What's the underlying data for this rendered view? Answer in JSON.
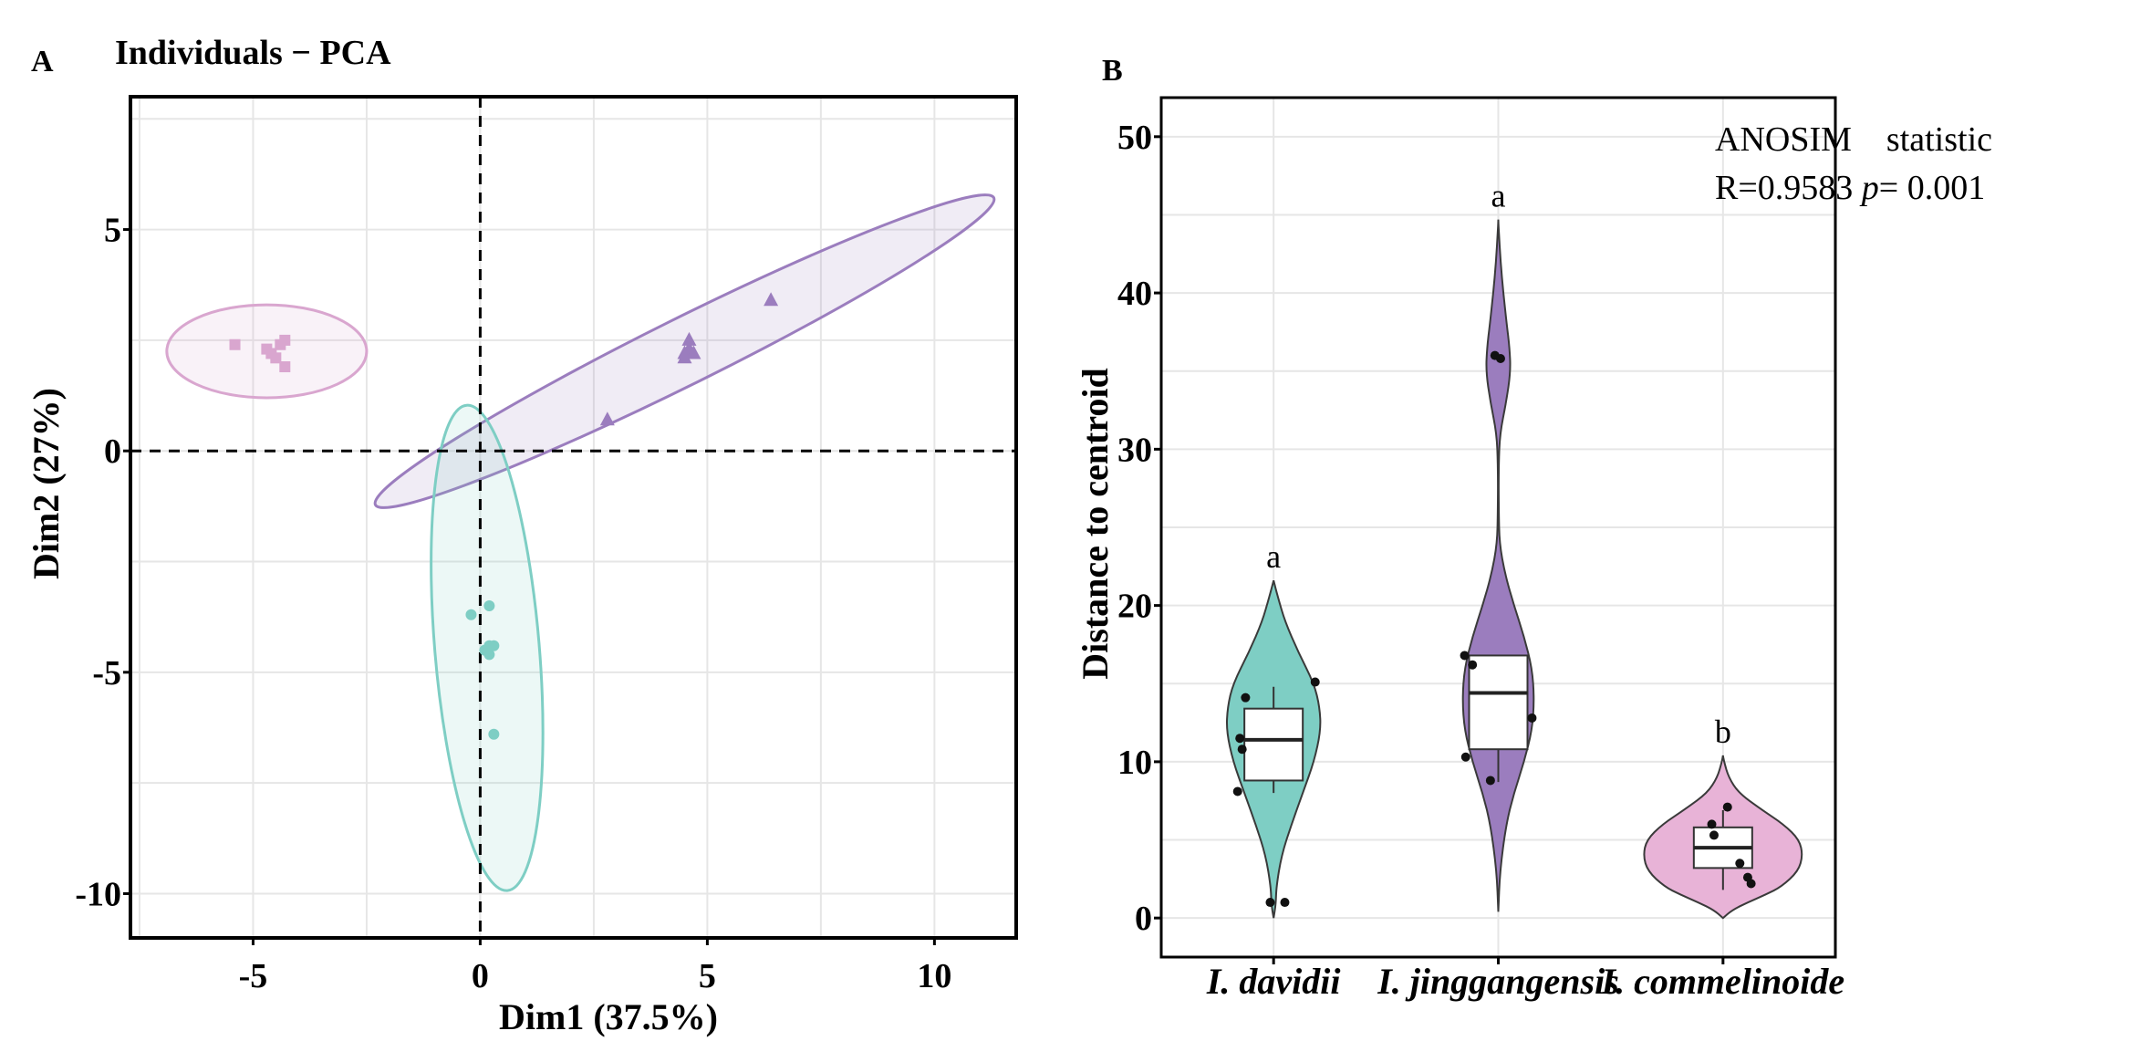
{
  "chart_data": [
    {
      "panel_label": "A",
      "type": "scatter",
      "title": "Individuals − PCA",
      "xlabel": "Dim1 (37.5%)",
      "ylabel": "Dim2 (27%)",
      "xlim": [
        -7.7,
        11.8
      ],
      "ylim": [
        -11.0,
        8.0
      ],
      "x_ticks": [
        -5,
        0,
        5,
        10
      ],
      "x_tick_labels": [
        "-5",
        "0",
        "5",
        "10"
      ],
      "y_ticks": [
        5,
        0,
        -5,
        -10
      ],
      "y_tick_labels": [
        "5",
        "0",
        "-5",
        "-10"
      ],
      "reference_lines": {
        "x": 0,
        "y": 0,
        "style": "dashed"
      },
      "grid": true,
      "legend": "none",
      "series": [
        {
          "marker": "square",
          "color": "#D9A6CF",
          "points": [
            [
              -5.4,
              2.4
            ],
            [
              -4.7,
              2.3
            ],
            [
              -4.6,
              2.2
            ],
            [
              -4.5,
              2.1
            ],
            [
              -4.4,
              2.4
            ],
            [
              -4.3,
              2.5
            ],
            [
              -4.3,
              1.9
            ]
          ],
          "ellipse": {
            "cx": -4.7,
            "cy": 2.25,
            "rx": 2.2,
            "ry": 1.05,
            "rotation_deg": 0
          }
        },
        {
          "marker": "triangle",
          "color": "#9B7DBE",
          "points": [
            [
              2.8,
              0.7
            ],
            [
              4.5,
              2.2
            ],
            [
              4.6,
              2.3
            ],
            [
              4.7,
              2.2
            ],
            [
              4.6,
              2.5
            ],
            [
              4.5,
              2.1
            ],
            [
              6.4,
              3.4
            ]
          ],
          "ellipse": {
            "cx": 4.5,
            "cy": 2.25,
            "rx": 7.6,
            "ry": 0.75,
            "rotation_deg": -26.4
          }
        },
        {
          "marker": "circle",
          "color": "#7ECEC4",
          "points": [
            [
              -0.2,
              -3.7
            ],
            [
              0.2,
              -3.5
            ],
            [
              0.1,
              -4.5
            ],
            [
              0.2,
              -4.4
            ],
            [
              0.3,
              -4.4
            ],
            [
              0.2,
              -4.6
            ],
            [
              0.3,
              -6.4
            ]
          ],
          "ellipse": {
            "cx": 0.15,
            "cy": -4.45,
            "rx": 1.15,
            "ry": 5.5,
            "rotation_deg": -4.8
          }
        }
      ]
    },
    {
      "panel_label": "B",
      "type": "violin",
      "ylabel": "Distance to centroid",
      "ylim": [
        -2.5,
        52.5
      ],
      "y_ticks": [
        0,
        10,
        20,
        30,
        40,
        50
      ],
      "y_tick_labels": [
        "0",
        "10",
        "20",
        "30",
        "40",
        "50"
      ],
      "categories": [
        "I. davidii",
        "I. jinggangensis",
        "I. commelinoide"
      ],
      "annotation": {
        "line1": "ANOSIM    statistic",
        "line2_prefix": "R=0.9583 ",
        "line2_italic": "p",
        "line2_suffix": "= 0.001"
      },
      "grid": true,
      "legend": "none",
      "series": [
        {
          "name": "I. davidii",
          "color": "#7ECEC4",
          "significance_letter": "a",
          "box": {
            "q1": 8.8,
            "median": 11.4,
            "q3": 13.4,
            "whisker_low": 8.0,
            "whisker_high": 14.8
          },
          "points": [
            [
              -0.25,
              14.1
            ],
            [
              -0.3,
              11.5
            ],
            [
              -0.28,
              10.8
            ],
            [
              -0.32,
              8.1
            ],
            [
              0.37,
              15.1
            ],
            [
              -0.03,
              1.0
            ],
            [
              0.1,
              1.0
            ]
          ],
          "density_profile": [
            [
              0,
              0
            ],
            [
              0.9,
              0.02
            ],
            [
              2,
              0.025
            ],
            [
              4,
              0.07
            ],
            [
              6,
              0.16
            ],
            [
              8,
              0.26
            ],
            [
              10,
              0.36
            ],
            [
              12,
              0.42
            ],
            [
              13.5,
              0.41
            ],
            [
              15,
              0.36
            ],
            [
              17,
              0.22
            ],
            [
              19,
              0.1
            ],
            [
              20.5,
              0.04
            ],
            [
              21.6,
              0
            ]
          ]
        },
        {
          "name": "I. jinggangensis",
          "color": "#9B7DBE",
          "significance_letter": "a",
          "box": {
            "q1": 10.8,
            "median": 14.4,
            "q3": 16.8,
            "whisker_low": 8.7,
            "whisker_high": 16.8
          },
          "points": [
            [
              -0.3,
              16.8
            ],
            [
              -0.23,
              16.2
            ],
            [
              -0.29,
              10.3
            ],
            [
              -0.03,
              36.0
            ],
            [
              0.02,
              35.8
            ],
            [
              0.3,
              12.8
            ],
            [
              -0.07,
              8.8
            ]
          ],
          "density_profile": [
            [
              0.4,
              0
            ],
            [
              3,
              0.015
            ],
            [
              6,
              0.07
            ],
            [
              8,
              0.14
            ],
            [
              10,
              0.23
            ],
            [
              12,
              0.3
            ],
            [
              14,
              0.32
            ],
            [
              16,
              0.3
            ],
            [
              18,
              0.23
            ],
            [
              20,
              0.14
            ],
            [
              22,
              0.06
            ],
            [
              24,
              0.01
            ],
            [
              26,
              0.004
            ],
            [
              29,
              0.003
            ],
            [
              31,
              0.015
            ],
            [
              33,
              0.07
            ],
            [
              35,
              0.11
            ],
            [
              36.5,
              0.1
            ],
            [
              38,
              0.075
            ],
            [
              40,
              0.045
            ],
            [
              42,
              0.02
            ],
            [
              44,
              0.004
            ],
            [
              44.7,
              0
            ]
          ]
        },
        {
          "name": "I. commelinoide",
          "color": "#E8B3D7",
          "significance_letter": "b",
          "box": {
            "q1": 3.2,
            "median": 4.5,
            "q3": 5.8,
            "whisker_low": 1.8,
            "whisker_high": 6.9
          },
          "points": [
            [
              -0.1,
              6.0
            ],
            [
              -0.08,
              5.3
            ],
            [
              0.15,
              3.5
            ],
            [
              0.22,
              2.6
            ],
            [
              0.25,
              2.2
            ],
            [
              0.04,
              7.1
            ]
          ],
          "density_profile": [
            [
              0,
              0
            ],
            [
              0.5,
              0.08
            ],
            [
              1,
              0.22
            ],
            [
              1.5,
              0.38
            ],
            [
              2,
              0.52
            ],
            [
              3,
              0.67
            ],
            [
              4,
              0.71
            ],
            [
              5,
              0.68
            ],
            [
              6,
              0.54
            ],
            [
              7,
              0.33
            ],
            [
              8,
              0.14
            ],
            [
              9,
              0.05
            ],
            [
              10,
              0.01
            ],
            [
              10.4,
              0
            ]
          ]
        }
      ]
    }
  ]
}
